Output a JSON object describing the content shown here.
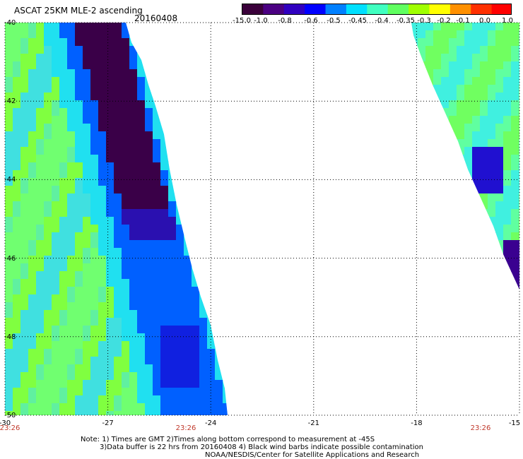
{
  "header": {
    "title": "ASCAT 25KM MLE-2 ascending",
    "date": "20160408"
  },
  "colorbar": {
    "labels": [
      "-15.0",
      "-1.0",
      "-0.8",
      "-0.6",
      "-0.5",
      "-0.45",
      "-0.4",
      "-0.35",
      "-0.3",
      "-0.2",
      "-0.1",
      "0.0",
      "1.0"
    ],
    "colors": [
      "#3a003a",
      "#4b0082",
      "#3000c0",
      "#0000ff",
      "#0080ff",
      "#00e0ff",
      "#40ffc0",
      "#60ff60",
      "#a0ff00",
      "#ffff00",
      "#ff9000",
      "#ff3000",
      "#ff0000"
    ]
  },
  "axes": {
    "y_ticks": [
      "-40",
      "-42",
      "-44",
      "-46",
      "-48",
      "-50"
    ],
    "x_ticks": [
      "-30",
      "-27",
      "-24",
      "-21",
      "-18",
      "-15"
    ],
    "time_labels": [
      "23:26",
      "23:26",
      "23:26"
    ],
    "grid": true
  },
  "notes": {
    "line1": "Note: 1) Times are GMT 2)Times along bottom correspond to measurement at -45S",
    "line2": "3)Data buffer is 22 hrs from 20160408 4) Black wind barbs indicate possible contamination",
    "line3": "NOAA/NESDIS/Center for Satellite Applications and Research"
  }
}
